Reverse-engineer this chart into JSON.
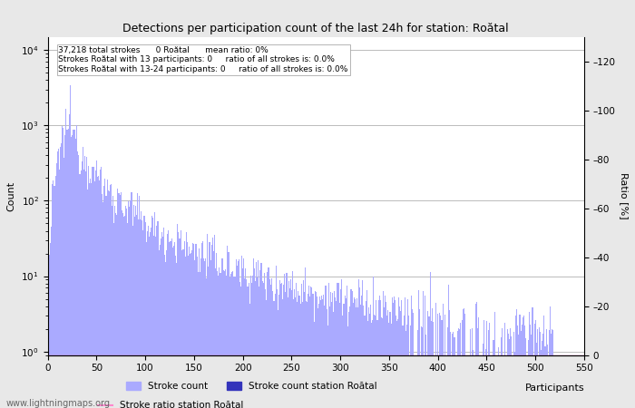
{
  "title": "Detections per participation count of the last 24h for station: Roătal",
  "xlabel": "Participants",
  "ylabel_left": "Count",
  "ylabel_right": "Ratio [%]",
  "annotation_lines": [
    "37,218 total strokes      0 Roătal      mean ratio: 0%",
    "Strokes Roătal with 13 participants: 0     ratio of all strokes is: 0.0%",
    "Strokes Roătal with 13-24 participants: 0     ratio of all strokes is: 0.0%"
  ],
  "watermark": "www.lightningmaps.org",
  "bar_color": "#aaaaff",
  "bar_color_station": "#3333bb",
  "ratio_line_color": "#ff88cc",
  "legend_labels": [
    "Stroke count",
    "Stroke count station Roătal",
    "Stroke ratio station Roătal"
  ],
  "xlim": [
    0,
    550
  ],
  "ylim_right": [
    0,
    130
  ],
  "right_ticks": [
    0,
    20,
    40,
    60,
    80,
    100,
    120
  ],
  "x_ticks": [
    0,
    50,
    100,
    150,
    200,
    250,
    300,
    350,
    400,
    450,
    500,
    550
  ],
  "grid_color": "#bbbbbb",
  "background_color": "#ffffff",
  "fig_facecolor": "#e8e8e8",
  "peak_x": 22,
  "peak_val": 1200,
  "decay_exp": 2.1,
  "noise_sigma": 0.35,
  "sparse_start": 370,
  "sparse_prob": 0.35,
  "zero_start": 520
}
